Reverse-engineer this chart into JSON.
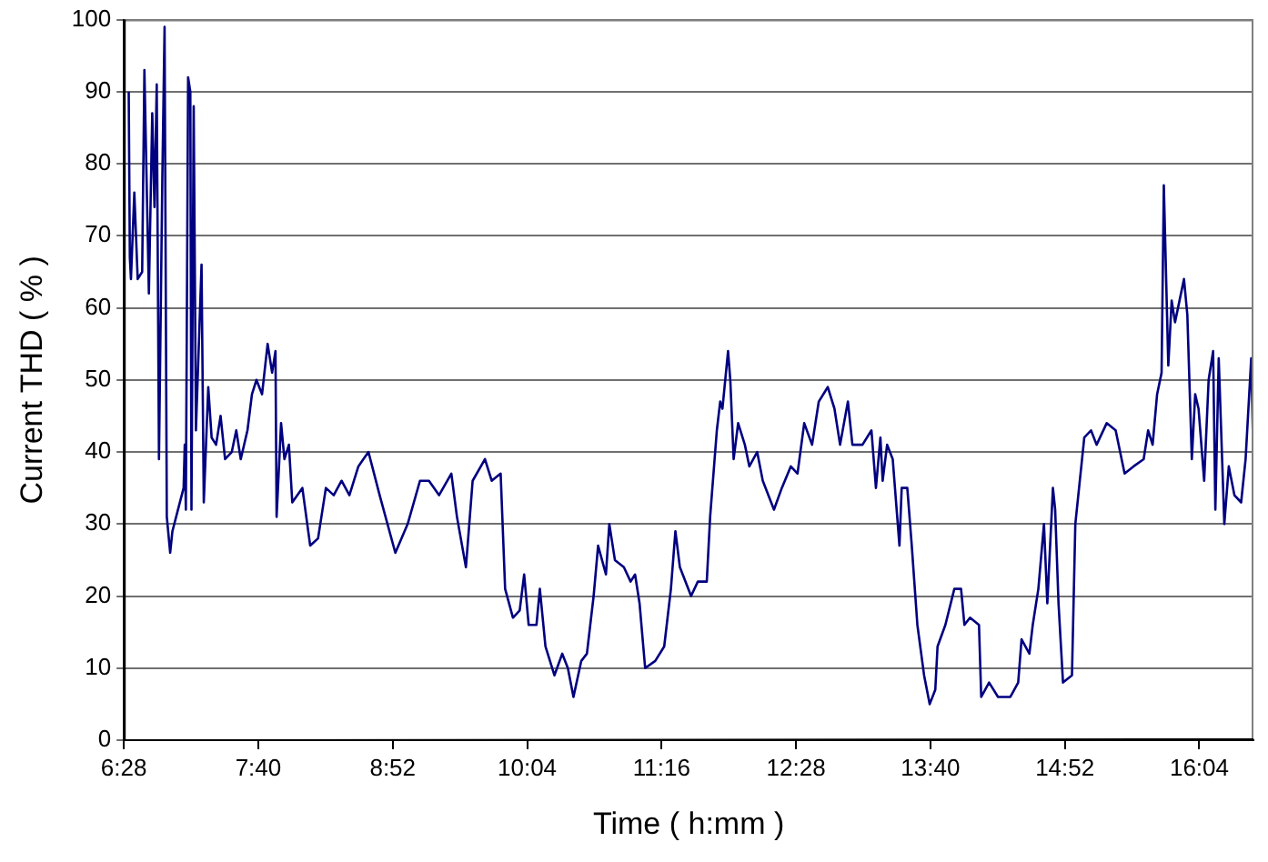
{
  "chart_data": {
    "type": "line",
    "xlabel": "Time ( h:mm )",
    "ylabel": "Current THD ( % )",
    "x": [
      6.51,
      6.52,
      6.53,
      6.56,
      6.59,
      6.63,
      6.65,
      6.69,
      6.72,
      6.74,
      6.76,
      6.78,
      6.81,
      6.83,
      6.85,
      6.88,
      6.9,
      6.95,
      7.0,
      7.01,
      7.02,
      7.04,
      7.06,
      7.07,
      7.09,
      7.11,
      7.16,
      7.18,
      7.22,
      7.25,
      7.29,
      7.33,
      7.37,
      7.43,
      7.47,
      7.51,
      7.57,
      7.61,
      7.65,
      7.7,
      7.75,
      7.79,
      7.82,
      7.83,
      7.87,
      7.9,
      7.94,
      7.97,
      8.06,
      8.13,
      8.2,
      8.27,
      8.34,
      8.41,
      8.48,
      8.56,
      8.65,
      8.75,
      8.89,
      9.0,
      9.11,
      9.19,
      9.28,
      9.39,
      9.44,
      9.52,
      9.58,
      9.69,
      9.75,
      9.83,
      9.87,
      9.94,
      10.0,
      10.04,
      10.08,
      10.15,
      10.18,
      10.23,
      10.31,
      10.38,
      10.43,
      10.48,
      10.55,
      10.6,
      10.66,
      10.7,
      10.77,
      10.8,
      10.85,
      10.93,
      10.99,
      11.03,
      11.07,
      11.12,
      11.21,
      11.29,
      11.35,
      11.39,
      11.43,
      11.53,
      11.59,
      11.67,
      11.7,
      11.76,
      11.79,
      11.81,
      11.86,
      11.88,
      11.91,
      11.95,
      12.01,
      12.05,
      12.12,
      12.17,
      12.27,
      12.34,
      12.42,
      12.48,
      12.54,
      12.61,
      12.67,
      12.75,
      12.81,
      12.86,
      12.93,
      12.97,
      13.06,
      13.14,
      13.15,
      13.18,
      13.22,
      13.24,
      13.28,
      13.33,
      13.39,
      13.41,
      13.46,
      13.5,
      13.55,
      13.61,
      13.66,
      13.71,
      13.73,
      13.8,
      13.88,
      13.94,
      13.97,
      14.02,
      14.1,
      14.12,
      14.19,
      14.27,
      14.38,
      14.45,
      14.48,
      14.55,
      14.58,
      14.63,
      14.68,
      14.71,
      14.76,
      14.78,
      14.81,
      14.85,
      14.93,
      14.96,
      15.0,
      15.04,
      15.1,
      15.15,
      15.24,
      15.32,
      15.4,
      15.48,
      15.57,
      15.61,
      15.65,
      15.69,
      15.73,
      15.75,
      15.79,
      15.82,
      15.85,
      15.89,
      15.93,
      15.96,
      16.0,
      16.03,
      16.06,
      16.11,
      16.15,
      16.19,
      16.21,
      16.24,
      16.29,
      16.33,
      16.38,
      16.44,
      16.48,
      16.53,
      16.55
    ],
    "values": [
      90,
      67,
      64,
      76,
      64,
      65,
      93,
      62,
      87,
      74,
      91,
      39,
      78,
      99,
      31,
      26,
      29,
      32,
      35,
      41,
      32,
      92,
      90,
      32,
      88,
      43,
      66,
      33,
      49,
      42,
      41,
      45,
      39,
      40,
      43,
      39,
      43,
      48,
      50,
      48,
      55,
      51,
      54,
      31,
      44,
      39,
      41,
      33,
      35,
      27,
      28,
      35,
      34,
      36,
      34,
      38,
      40,
      34,
      26,
      30,
      36,
      36,
      34,
      37,
      31,
      24,
      36,
      39,
      36,
      37,
      21,
      17,
      18,
      23,
      16,
      16,
      21,
      13,
      9,
      12,
      10,
      6,
      11,
      12,
      20,
      27,
      23,
      30,
      25,
      24,
      22,
      23,
      19,
      10,
      11,
      13,
      21,
      29,
      24,
      20,
      22,
      22,
      31,
      43,
      47,
      46,
      54,
      50,
      39,
      44,
      41,
      38,
      40,
      36,
      32,
      35,
      38,
      37,
      44,
      41,
      47,
      49,
      46,
      41,
      47,
      41,
      41,
      43,
      43,
      35,
      42,
      36,
      41,
      39,
      27,
      35,
      35,
      27,
      16,
      9,
      5,
      7,
      13,
      16,
      21,
      21,
      16,
      17,
      16,
      6,
      8,
      6,
      6,
      8,
      14,
      12,
      16,
      21,
      30,
      19,
      35,
      32,
      19,
      8,
      9,
      30,
      36,
      42,
      43,
      41,
      44,
      43,
      37,
      38,
      39,
      43,
      41,
      48,
      51,
      77,
      52,
      61,
      58,
      61,
      64,
      59,
      39,
      48,
      46,
      36,
      50,
      54,
      32,
      53,
      30,
      38,
      34,
      33,
      39,
      53,
      39
    ],
    "color": "#000080",
    "xlim": [
      6.466667,
      16.55
    ],
    "xticks": [
      {
        "value": 6.466667,
        "label": "6:28"
      },
      {
        "value": 7.666667,
        "label": "7:40"
      },
      {
        "value": 8.866667,
        "label": "8:52"
      },
      {
        "value": 10.066667,
        "label": "10:04"
      },
      {
        "value": 11.266667,
        "label": "11:16"
      },
      {
        "value": 12.466667,
        "label": "12:28"
      },
      {
        "value": 13.666667,
        "label": "13:40"
      },
      {
        "value": 14.866667,
        "label": "14:52"
      },
      {
        "value": 16.066667,
        "label": "16:04"
      }
    ],
    "ylim": [
      0,
      100
    ],
    "yticks": [
      0,
      10,
      20,
      30,
      40,
      50,
      60,
      70,
      80,
      90,
      100
    ],
    "grid": "y",
    "marker": "none",
    "line_style": "solid"
  }
}
